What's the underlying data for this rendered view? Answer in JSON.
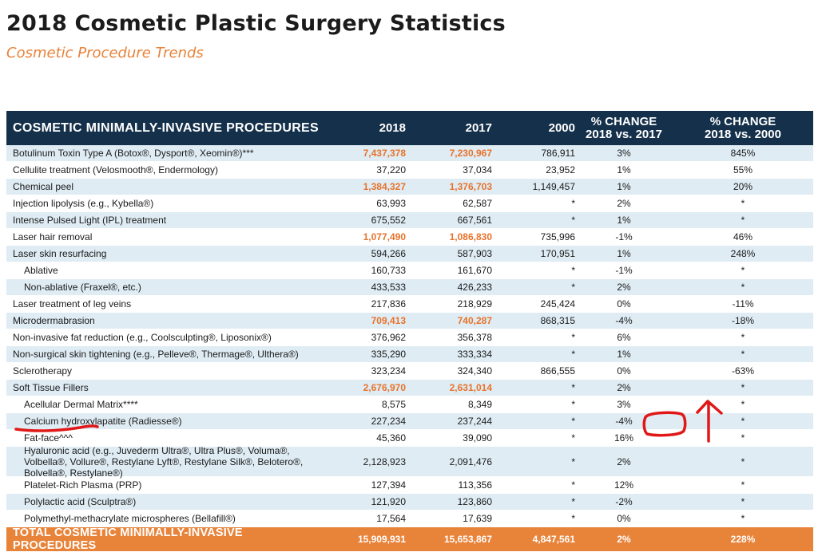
{
  "title": "2018 Cosmetic Plastic Surgery Statistics",
  "subtitle": "Cosmetic Procedure Trends",
  "table": {
    "headers": {
      "name": "COSMETIC MINIMALLY-INVASIVE PROCEDURES",
      "y2018": "2018",
      "y2017": "2017",
      "y2000": "2000",
      "pct_2017_line1": "% CHANGE",
      "pct_2017_line2": "2018 vs. 2017",
      "pct_2000_line1": "% CHANGE",
      "pct_2000_line2": "2018 vs. 2000"
    },
    "rows": [
      {
        "name": "Botulinum Toxin Type A (Botox®, Dysport®, Xeomin®)***",
        "y2018": "7,437,378",
        "y2017": "7,230,967",
        "y2000": "786,911",
        "pct_2017": "3%",
        "pct_2000": "845%"
      },
      {
        "name": "Cellulite treatment (Velosmooth®, Endermology)",
        "y2018": "37,220",
        "y2017": "37,034",
        "y2000": "23,952",
        "pct_2017": "1%",
        "pct_2000": "55%"
      },
      {
        "name": "Chemical peel",
        "y2018": "1,384,327",
        "y2017": "1,376,703",
        "y2000": "1,149,457",
        "pct_2017": "1%",
        "pct_2000": "20%"
      },
      {
        "name": "Injection lipolysis (e.g., Kybella®)",
        "y2018": "63,993",
        "y2017": "62,587",
        "y2000": "*",
        "pct_2017": "2%",
        "pct_2000": "*"
      },
      {
        "name": "Intense Pulsed Light (IPL) treatment",
        "y2018": "675,552",
        "y2017": "667,561",
        "y2000": "*",
        "pct_2017": "1%",
        "pct_2000": "*"
      },
      {
        "name": "Laser hair removal",
        "y2018": "1,077,490",
        "y2017": "1,086,830",
        "y2000": "735,996",
        "pct_2017": "-1%",
        "pct_2000": "46%"
      },
      {
        "name": "Laser skin resurfacing",
        "y2018": "594,266",
        "y2017": "587,903",
        "y2000": "170,951",
        "pct_2017": "1%",
        "pct_2000": "248%"
      },
      {
        "name": "Ablative",
        "y2018": "160,733",
        "y2017": "161,670",
        "y2000": "*",
        "pct_2017": "-1%",
        "pct_2000": "*"
      },
      {
        "name": "Non-ablative (Fraxel®, etc.)",
        "y2018": "433,533",
        "y2017": "426,233",
        "y2000": "*",
        "pct_2017": "2%",
        "pct_2000": "*"
      },
      {
        "name": "Laser treatment of leg veins",
        "y2018": "217,836",
        "y2017": "218,929",
        "y2000": "245,424",
        "pct_2017": "0%",
        "pct_2000": "-11%"
      },
      {
        "name": "Microdermabrasion",
        "y2018": "709,413",
        "y2017": "740,287",
        "y2000": "868,315",
        "pct_2017": "-4%",
        "pct_2000": "-18%"
      },
      {
        "name": "Non-invasive fat reduction (e.g., Coolsculpting®, Liposonix®)",
        "y2018": "376,962",
        "y2017": "356,378",
        "y2000": "*",
        "pct_2017": "6%",
        "pct_2000": "*"
      },
      {
        "name": "Non-surgical skin tightening (e.g., Pelleve®, Thermage®, Ulthera®)",
        "y2018": "335,290",
        "y2017": "333,334",
        "y2000": "*",
        "pct_2017": "1%",
        "pct_2000": "*"
      },
      {
        "name": "Sclerotherapy",
        "y2018": "323,234",
        "y2017": "324,340",
        "y2000": "866,555",
        "pct_2017": "0%",
        "pct_2000": "-63%"
      },
      {
        "name": "Soft Tissue Fillers",
        "y2018": "2,676,970",
        "y2017": "2,631,014",
        "y2000": "*",
        "pct_2017": "2%",
        "pct_2000": "*"
      },
      {
        "name": "Acellular Dermal Matrix****",
        "y2018": "8,575",
        "y2017": "8,349",
        "y2000": "*",
        "pct_2017": "3%",
        "pct_2000": "*"
      },
      {
        "name": "Calcium hydroxylapatite (Radiesse®)",
        "y2018": "227,234",
        "y2017": "237,244",
        "y2000": "*",
        "pct_2017": "-4%",
        "pct_2000": "*"
      },
      {
        "name": "Fat-face^^^",
        "y2018": "45,360",
        "y2017": "39,090",
        "y2000": "*",
        "pct_2017": "16%",
        "pct_2000": "*"
      },
      {
        "name": "Hyaluronic acid (e.g., Juvederm Ultra®, Ultra Plus®, Voluma®, Volbella®, Vollure®, Restylane Lyft®, Restylane Silk®, Belotero®, Bolvella®, Restylane®)",
        "y2018": "2,128,923",
        "y2017": "2,091,476",
        "y2000": "*",
        "pct_2017": "2%",
        "pct_2000": "*"
      },
      {
        "name": "Platelet-Rich Plasma (PRP)",
        "y2018": "127,394",
        "y2017": "113,356",
        "y2000": "*",
        "pct_2017": "12%",
        "pct_2000": "*"
      },
      {
        "name": "Polylactic acid (Sculptra®)",
        "y2018": "121,920",
        "y2017": "123,860",
        "y2000": "*",
        "pct_2017": "-2%",
        "pct_2000": "*"
      },
      {
        "name": "Polymethyl-methacrylate microspheres (Bellafill®)",
        "y2018": "17,564",
        "y2017": "17,639",
        "y2000": "*",
        "pct_2017": "0%",
        "pct_2000": "*"
      }
    ],
    "total": {
      "name": "TOTAL COSMETIC MINIMALLY-INVASIVE PROCEDURES",
      "y2018": "15,909,931",
      "y2017": "15,653,867",
      "y2000": "4,847,561",
      "pct_2017": "2%",
      "pct_2000": "228%"
    }
  },
  "colors": {
    "header_bg": "#14304a",
    "accent_orange": "#e8833a",
    "row_blue": "#dfecf4",
    "annotation_red": "#e01818"
  }
}
